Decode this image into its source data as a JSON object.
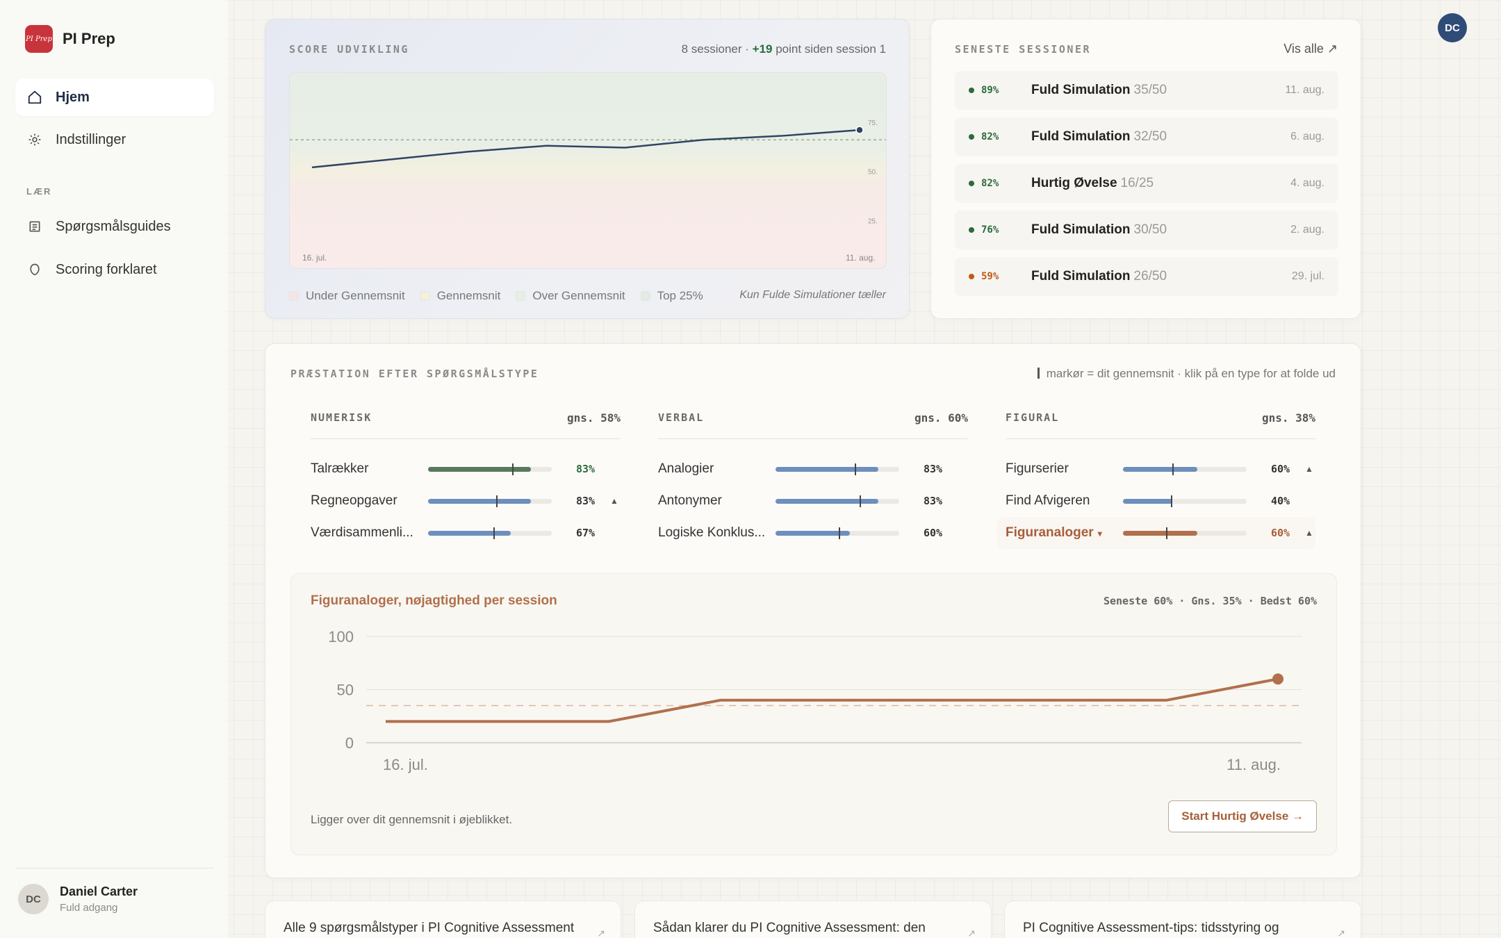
{
  "brand": {
    "logo_text": "PI Prep",
    "name": "PI Prep"
  },
  "nav": {
    "items": [
      {
        "label": "Hjem",
        "icon": "home-icon"
      },
      {
        "label": "Indstillinger",
        "icon": "settings-icon"
      }
    ],
    "section_label": "LÆR",
    "learn_items": [
      {
        "label": "Spørgsmålsguides",
        "icon": "guide-icon"
      },
      {
        "label": "Scoring forklaret",
        "icon": "shield-icon"
      }
    ]
  },
  "user": {
    "initials": "DC",
    "name": "Daniel Carter",
    "plan": "Fuld adgang"
  },
  "score_card": {
    "label": "SCORE UDVIKLING",
    "meta_prefix": "8 sessioner · ",
    "meta_delta": "+19",
    "meta_suffix": " point siden session 1",
    "legend": [
      "Under Gennemsnit",
      "Gennemsnit",
      "Over Gennemsnit",
      "Top 25%"
    ],
    "legend_colors": [
      "#f4e6e4",
      "#f4efd9",
      "#e7efe5",
      "#e3ece3"
    ],
    "note": "Kun Fulde Simulationer tæller"
  },
  "chart_data": [
    {
      "type": "line",
      "x": [
        "16. jul.",
        "",
        "",
        "",
        "",
        "",
        "",
        "11. aug."
      ],
      "series": [
        {
          "values": [
            52,
            56,
            60,
            63,
            62,
            66,
            68,
            71
          ]
        }
      ],
      "ylim": [
        0,
        100
      ],
      "threshold": 66,
      "tick_labels_y": [
        "75.",
        "50.",
        "25."
      ],
      "tick_values_y": [
        75,
        50,
        25
      ],
      "xlabels": [
        "16. jul.",
        "11. aug."
      ],
      "line_color": "#2f4365"
    },
    {
      "type": "line",
      "title": "Figuranaloger, nøjagtighed per session",
      "x": [
        "16. jul.",
        "",
        "",
        "",
        "",
        "",
        "",
        "",
        "11. aug."
      ],
      "series": [
        {
          "values": [
            20,
            20,
            20,
            40,
            40,
            40,
            40,
            40,
            60
          ]
        }
      ],
      "ylim": [
        0,
        100
      ],
      "yticks": [
        0,
        50,
        100
      ],
      "average": 35,
      "xlabels": [
        "16. jul.",
        "11. aug."
      ],
      "line_color": "#b0704c"
    }
  ],
  "sessions_card": {
    "label": "SENESTE SESSIONER",
    "see_all": "Vis alle ↗",
    "rows": [
      {
        "pct": "89%",
        "name": "Fuld Simulation",
        "score": "35/50",
        "date": "11. aug.",
        "color": "#2c6a3d"
      },
      {
        "pct": "82%",
        "name": "Fuld Simulation",
        "score": "32/50",
        "date": "6. aug.",
        "color": "#2c6a3d"
      },
      {
        "pct": "82%",
        "name": "Hurtig Øvelse",
        "score": "16/25",
        "date": "4. aug.",
        "color": "#2c6a3d"
      },
      {
        "pct": "76%",
        "name": "Fuld Simulation",
        "score": "30/50",
        "date": "2. aug.",
        "color": "#2c6a3d"
      },
      {
        "pct": "59%",
        "name": "Fuld Simulation",
        "score": "26/50",
        "date": "29. jul.",
        "color": "#c05a1a"
      }
    ]
  },
  "perf_card": {
    "label": "PRÆSTATION EFTER SPØRGSMÅLSTYPE",
    "note": "markør = dit gennemsnit · klik på en type for at folde ud",
    "columns": [
      {
        "title": "NUMERISK",
        "avg": "gns. 58%",
        "rows": [
          {
            "name": "Talrækker",
            "pct": "83%",
            "value": 0.83,
            "avg": 0.68,
            "arrow": "",
            "color": "#577a5c",
            "pct_color": "#2c6a3d"
          },
          {
            "name": "Regneopgaver",
            "pct": "83%",
            "value": 0.83,
            "avg": 0.55,
            "arrow": "▲",
            "color": "#6d8fbd",
            "pct_color": "#333"
          },
          {
            "name": "Værdisammenli...",
            "pct": "67%",
            "value": 0.67,
            "avg": 0.53,
            "arrow": "",
            "color": "#6d8fbd",
            "pct_color": "#333"
          }
        ]
      },
      {
        "title": "VERBAL",
        "avg": "gns. 60%",
        "rows": [
          {
            "name": "Analogier",
            "pct": "83%",
            "value": 0.83,
            "avg": 0.64,
            "arrow": "",
            "color": "#6d8fbd",
            "pct_color": "#333"
          },
          {
            "name": "Antonymer",
            "pct": "83%",
            "value": 0.83,
            "avg": 0.68,
            "arrow": "",
            "color": "#6d8fbd",
            "pct_color": "#333"
          },
          {
            "name": "Logiske Konklus...",
            "pct": "60%",
            "value": 0.6,
            "avg": 0.51,
            "arrow": "",
            "color": "#6d8fbd",
            "pct_color": "#333"
          }
        ]
      },
      {
        "title": "FIGURAL",
        "avg": "gns. 38%",
        "rows": [
          {
            "name": "Figurserier",
            "pct": "60%",
            "value": 0.6,
            "avg": 0.4,
            "arrow": "▲",
            "color": "#6d8fbd",
            "pct_color": "#333"
          },
          {
            "name": "Find Afvigeren",
            "pct": "40%",
            "value": 0.4,
            "avg": 0.39,
            "arrow": "",
            "color": "#6d8fbd",
            "pct_color": "#333"
          },
          {
            "name": "Figuranaloger",
            "pct": "60%",
            "value": 0.6,
            "avg": 0.35,
            "arrow": "▲",
            "color": "#b0704c",
            "pct_color": "#a65f3b",
            "selected": true,
            "caret": "▾"
          }
        ]
      }
    ],
    "detail": {
      "title": "Figuranaloger, nøjagtighed per session",
      "stats": "Seneste 60% · Gns. 35% · Bedst 60%",
      "note": "Ligger over dit gennemsnit i øjeblikket.",
      "button": "Start Hurtig Øvelse →"
    }
  },
  "articles": [
    {
      "title": "Alle 9 spørgsmålstyper i PI Cognitive Assessment"
    },
    {
      "title": "Sådan klarer du PI Cognitive Assessment: den"
    },
    {
      "title": "PI Cognitive Assessment-tips: tidsstyring og"
    }
  ]
}
